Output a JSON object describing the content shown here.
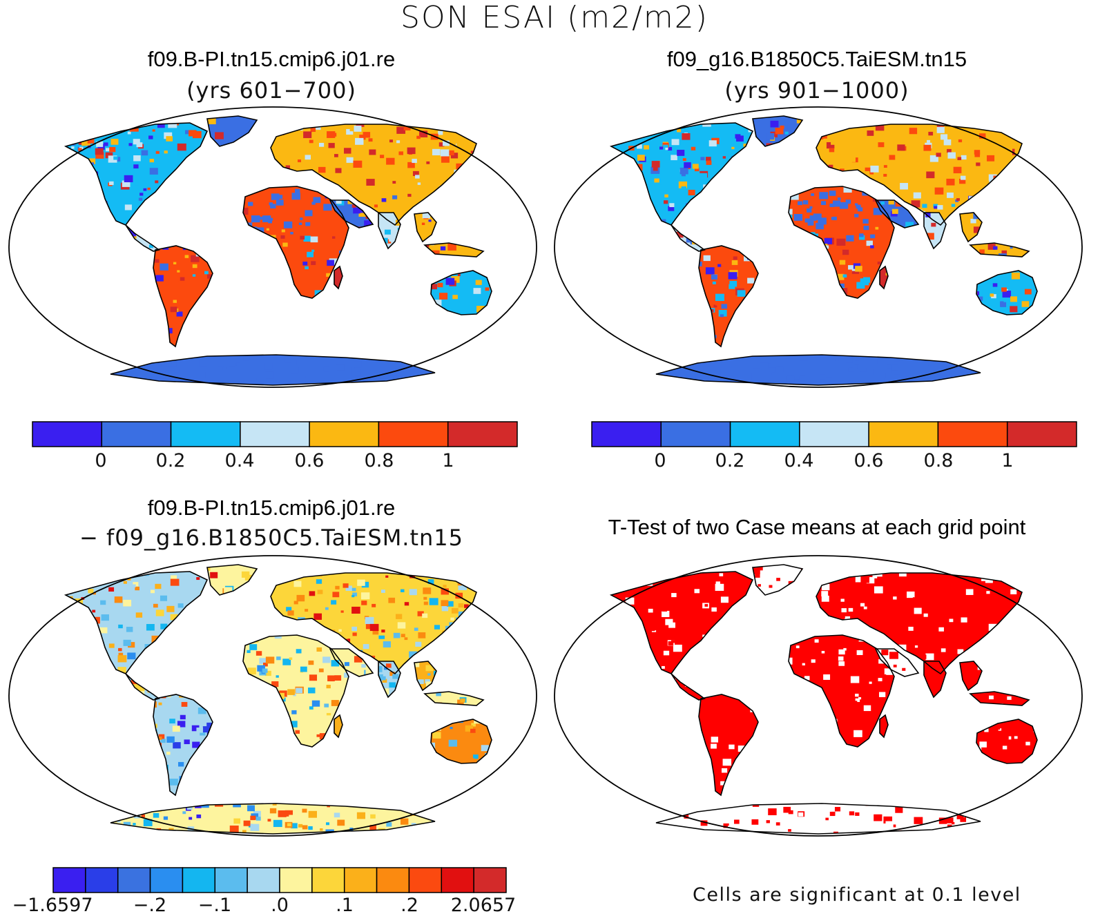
{
  "title": "SON ESAI (m2/m2)",
  "panels": [
    {
      "title": "f09.B-PI.tn15.cmip6.j01.re",
      "subtitle": "(yrs 601−700)"
    },
    {
      "title": "f09_g16.B1850C5.TaiESM.tn15",
      "subtitle": "(yrs 901−1000)"
    },
    {
      "title": "f09.B-PI.tn15.cmip6.j01.re",
      "subtitle": "− f09_g16.B1850C5.TaiESM.tn15"
    },
    {
      "title": "T-Test of two Case means at each grid point",
      "subtitle": ""
    }
  ],
  "colorbars": {
    "mean": {
      "colors": [
        "#3a1ff0",
        "#3a6fe3",
        "#14bbf4",
        "#c6e5f5",
        "#fbb812",
        "#fc4a0e",
        "#d32a2a"
      ],
      "labels": [
        "0",
        "0.2",
        "0.4",
        "0.6",
        "0.8",
        "1"
      ]
    },
    "diff": {
      "colors": [
        "#3a1ff0",
        "#2a3ee8",
        "#3a72e0",
        "#2a8ef0",
        "#14b6f0",
        "#5bbcee",
        "#a8d8f0",
        "#fdf49e",
        "#fcd63a",
        "#fbb01a",
        "#fb8a10",
        "#fb4a10",
        "#e11010",
        "#d32a2a"
      ],
      "labels": [
        "−1.6597",
        "−.2",
        "−.1",
        ".0",
        ".1",
        ".2",
        "2.0657"
      ]
    }
  },
  "ttest_color": "#ff0000",
  "ttest_note": "Cells are significant at 0.1 level"
}
